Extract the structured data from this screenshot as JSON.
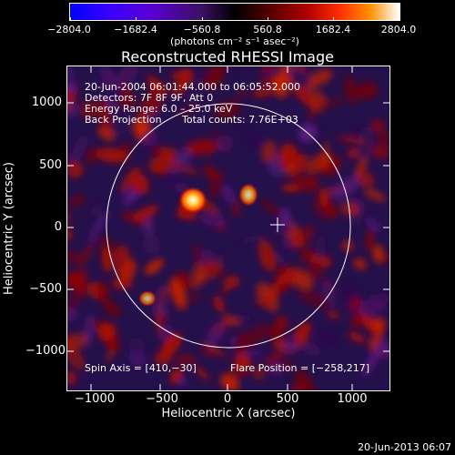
{
  "colorbar": {
    "ticks": [
      "−2804.0",
      "−1682.4",
      "−560.8",
      "560.8",
      "1682.4",
      "2804.0"
    ],
    "units": "(photons cm⁻² s⁻¹ asec⁻²)"
  },
  "title": "Reconstructed RHESSI Image",
  "annotations": {
    "time_range": "20-Jun-2004 06:01:44.000 to 06:05:52.000",
    "detectors": "Detectors: 7F 8F 9F, Att 0",
    "energy_range": "Energy Range: 6.0 – 25.0 keV",
    "method": "Back Projection",
    "total_counts": "Total counts: 7.76E+03",
    "spin_axis": "Spin Axis = [410,−30]",
    "flare_position": "Flare Position = [−258,217]"
  },
  "axes": {
    "xlabel": "Heliocentric X (arcsec)",
    "ylabel": "Heliocentric Y (arcsec)",
    "xticks": [
      "−1000",
      "−500",
      "0",
      "500",
      "1000"
    ],
    "yticks": [
      "1000",
      "500",
      "0",
      "−500",
      "−1000"
    ]
  },
  "colors": {
    "background": "#000000",
    "foreground": "#ffffff"
  },
  "timestamp": "20-Jun-2013 06:07"
}
